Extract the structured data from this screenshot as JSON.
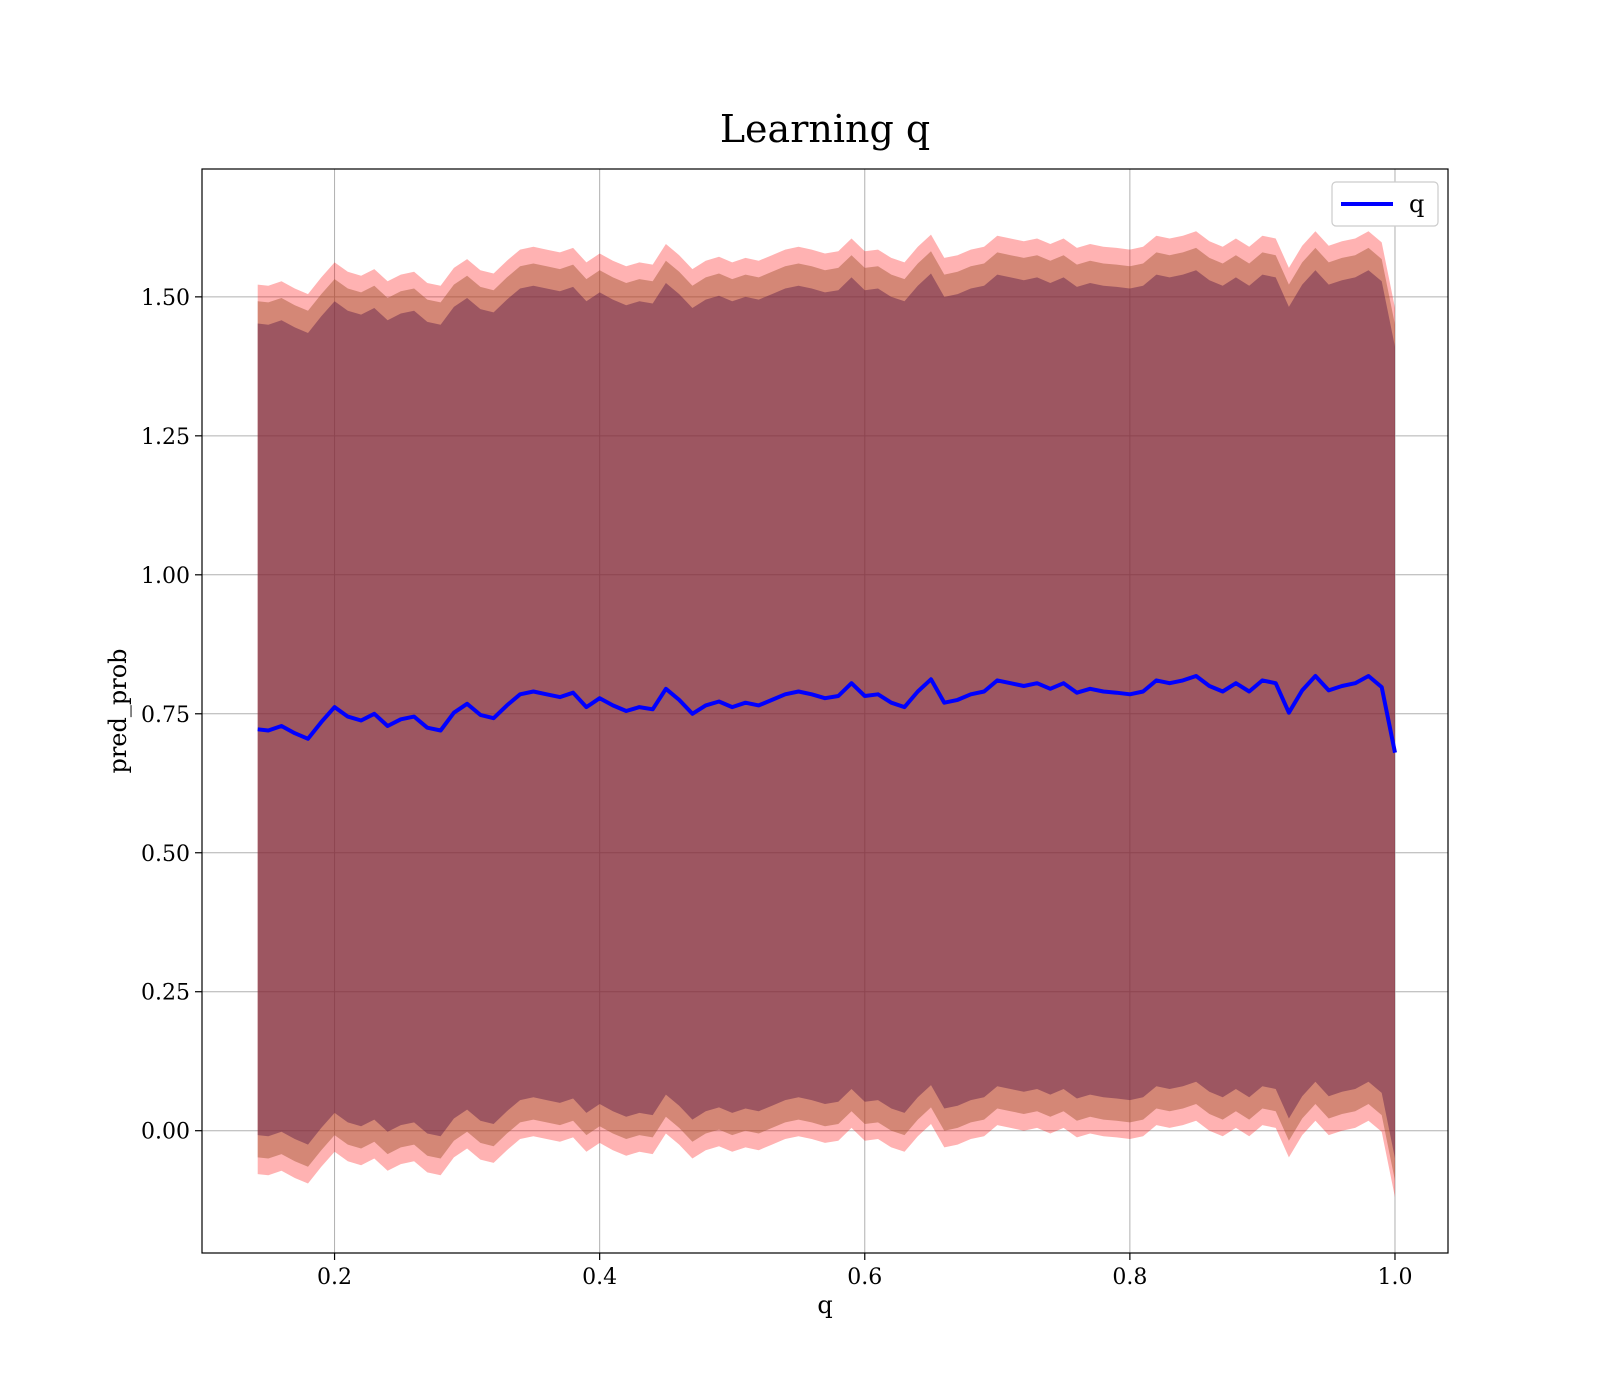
{
  "chart_data": {
    "type": "line",
    "title": "Learning q",
    "xlabel": "q",
    "ylabel": "pred_prob",
    "xlim": [
      0.1,
      1.04
    ],
    "ylim": [
      -0.22,
      1.73
    ],
    "xticks": [
      0.2,
      0.4,
      0.6,
      0.8,
      1.0
    ],
    "xtick_labels": [
      "0.2",
      "0.4",
      "0.6",
      "0.8",
      "1.0"
    ],
    "yticks": [
      0.0,
      0.25,
      0.5,
      0.75,
      1.0,
      1.25,
      1.5
    ],
    "ytick_labels": [
      "0.00",
      "0.25",
      "0.50",
      "0.75",
      "1.00",
      "1.25",
      "1.50"
    ],
    "grid": true,
    "legend": {
      "position": "top-right",
      "entries": [
        {
          "label": "q",
          "color": "#0000ff"
        }
      ]
    },
    "x": [
      0.142,
      0.15,
      0.16,
      0.17,
      0.18,
      0.19,
      0.2,
      0.21,
      0.22,
      0.23,
      0.24,
      0.25,
      0.26,
      0.27,
      0.28,
      0.29,
      0.3,
      0.31,
      0.32,
      0.33,
      0.34,
      0.35,
      0.36,
      0.37,
      0.38,
      0.39,
      0.4,
      0.41,
      0.42,
      0.43,
      0.44,
      0.45,
      0.46,
      0.47,
      0.48,
      0.49,
      0.5,
      0.51,
      0.52,
      0.53,
      0.54,
      0.55,
      0.56,
      0.57,
      0.58,
      0.59,
      0.6,
      0.61,
      0.62,
      0.63,
      0.64,
      0.65,
      0.66,
      0.67,
      0.68,
      0.69,
      0.7,
      0.71,
      0.72,
      0.73,
      0.74,
      0.75,
      0.76,
      0.77,
      0.78,
      0.79,
      0.8,
      0.81,
      0.82,
      0.83,
      0.84,
      0.85,
      0.86,
      0.87,
      0.88,
      0.89,
      0.9,
      0.91,
      0.92,
      0.93,
      0.94,
      0.95,
      0.96,
      0.97,
      0.98,
      0.99,
      1.0
    ],
    "series": [
      {
        "name": "q",
        "color": "#0000ff",
        "values": [
          0.722,
          0.72,
          0.728,
          0.715,
          0.705,
          0.735,
          0.762,
          0.745,
          0.738,
          0.75,
          0.728,
          0.74,
          0.745,
          0.725,
          0.72,
          0.752,
          0.768,
          0.748,
          0.742,
          0.765,
          0.785,
          0.79,
          0.785,
          0.78,
          0.788,
          0.762,
          0.778,
          0.765,
          0.755,
          0.762,
          0.758,
          0.795,
          0.775,
          0.75,
          0.765,
          0.772,
          0.762,
          0.77,
          0.765,
          0.775,
          0.785,
          0.79,
          0.785,
          0.778,
          0.782,
          0.805,
          0.782,
          0.785,
          0.77,
          0.762,
          0.79,
          0.812,
          0.77,
          0.775,
          0.785,
          0.79,
          0.81,
          0.805,
          0.8,
          0.805,
          0.795,
          0.805,
          0.788,
          0.795,
          0.79,
          0.788,
          0.785,
          0.79,
          0.81,
          0.805,
          0.81,
          0.818,
          0.8,
          0.79,
          0.805,
          0.79,
          0.81,
          0.805,
          0.752,
          0.792,
          0.818,
          0.792,
          0.8,
          0.805,
          0.818,
          0.798,
          0.68
        ]
      }
    ],
    "bands": [
      {
        "color": "#ff0000",
        "opacity": 0.3,
        "offset": 0.8
      },
      {
        "color": "#a0522d",
        "opacity": 0.45,
        "offset": 0.77
      },
      {
        "color": "#5a1a4a",
        "opacity": 0.45,
        "offset": 0.73
      }
    ]
  }
}
